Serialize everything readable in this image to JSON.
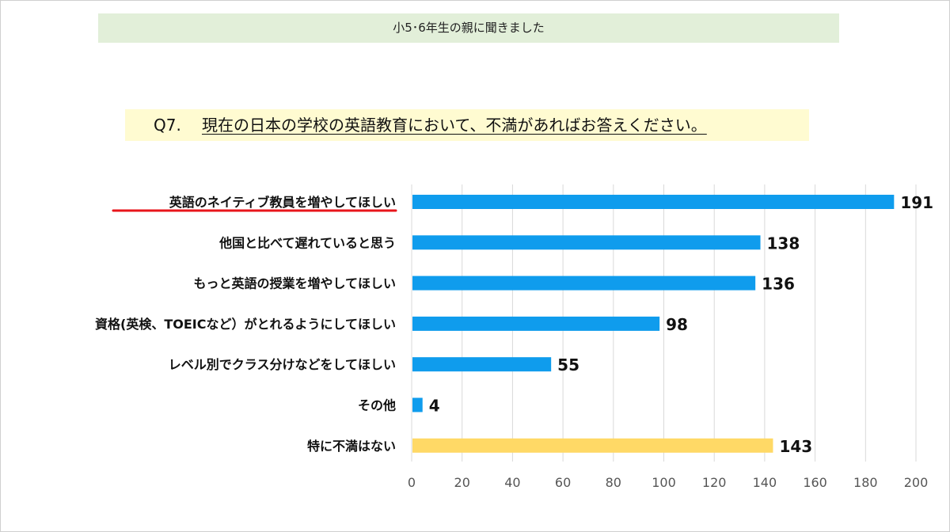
{
  "banner": {
    "text": "小5･6年生の親に聞きました"
  },
  "question": {
    "prefix": "Q7.",
    "text": "現在の日本の学校の英語教育において、不満があればお答えください。"
  },
  "colors": {
    "blue": "#0f9ced",
    "yellow": "#ffd966",
    "highlight": "#e8151b",
    "grid": "#d9d9d9"
  },
  "chart_data": {
    "type": "bar",
    "orientation": "horizontal",
    "categories": [
      "英語のネイティブ教員を増やしてほしい",
      "他国と比べて遅れていると思う",
      "もっと英語の授業を増やしてほしい",
      "資格(英検、TOEICなど）がとれるようにしてほしい",
      "レベル別でクラス分けなどをしてほしい",
      "その他",
      "特に不満はない"
    ],
    "values": [
      191,
      138,
      136,
      98,
      55,
      4,
      143
    ],
    "bar_colors": [
      "#0f9ced",
      "#0f9ced",
      "#0f9ced",
      "#0f9ced",
      "#0f9ced",
      "#0f9ced",
      "#ffd966"
    ],
    "highlighted_category": "英語のネイティブ教員を増やしてほしい",
    "xlim": [
      0,
      200
    ],
    "xticks": [
      0,
      20,
      40,
      60,
      80,
      100,
      120,
      140,
      160,
      180,
      200
    ],
    "grid": true,
    "legend": false
  }
}
